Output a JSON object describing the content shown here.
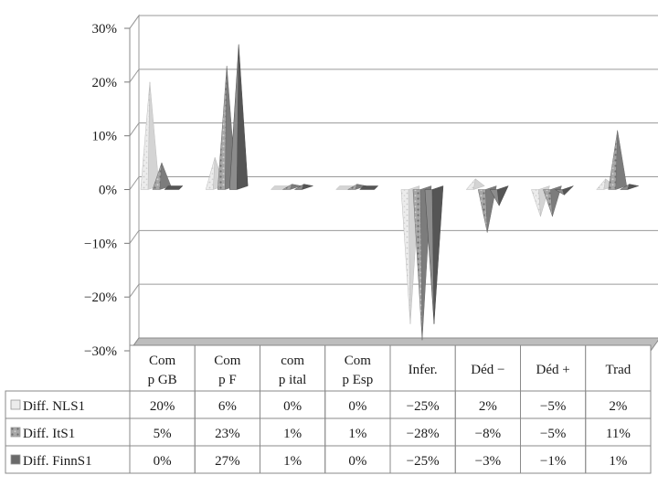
{
  "chart_data": {
    "type": "bar",
    "style": "3d-pyramid",
    "y_unit": "%",
    "ylim": [
      -30,
      30
    ],
    "y_ticks": [
      "30%",
      "20%",
      "10%",
      "0%",
      "−10%",
      "−20%",
      "−30%"
    ],
    "grid": true,
    "legend": "table-below",
    "categories": [
      {
        "line1": "Com",
        "line2": "p GB"
      },
      {
        "line1": "Com",
        "line2": "p F"
      },
      {
        "line1": "com",
        "line2": "p ital"
      },
      {
        "line1": "Com",
        "line2": "p Esp"
      },
      {
        "line1": "Infer.",
        "line2": ""
      },
      {
        "line1": "Déd −",
        "line2": ""
      },
      {
        "line1": "Déd +",
        "line2": ""
      },
      {
        "line1": "Trad",
        "line2": ""
      }
    ],
    "series": [
      {
        "name": "Diff. NLS1",
        "values": [
          20,
          6,
          0,
          0,
          -25,
          2,
          -5,
          2
        ],
        "labels": [
          "20%",
          "6%",
          "0%",
          "0%",
          "−25%",
          "2%",
          "−5%",
          "2%"
        ],
        "color": "#e4e4e4"
      },
      {
        "name": "Diff. ItS1",
        "values": [
          5,
          23,
          1,
          1,
          -28,
          -8,
          -5,
          11
        ],
        "labels": [
          "5%",
          "23%",
          "1%",
          "1%",
          "−28%",
          "−8%",
          "−5%",
          "11%"
        ],
        "color": "#9a9a9a"
      },
      {
        "name": "Diff. FinnS1",
        "values": [
          0,
          27,
          1,
          0,
          -25,
          -3,
          -1,
          1
        ],
        "labels": [
          "0%",
          "27%",
          "1%",
          "0%",
          "−25%",
          "−3%",
          "−1%",
          "1%"
        ],
        "color": "#6a6a6a"
      }
    ]
  }
}
